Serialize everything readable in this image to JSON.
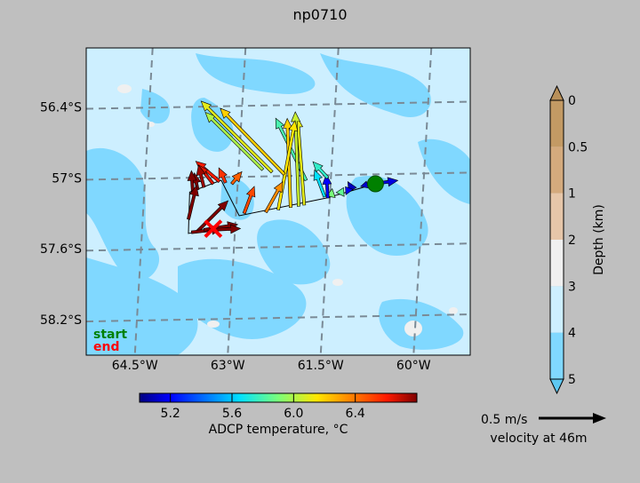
{
  "chart_data": {
    "type": "quiver-map",
    "title": "np0710",
    "lon_ticks": [
      {
        "value": -64.5,
        "label": "64.5°W"
      },
      {
        "value": -63.0,
        "label": "63°W"
      },
      {
        "value": -61.5,
        "label": "61.5°W"
      },
      {
        "value": -60.0,
        "label": "60°W"
      }
    ],
    "lat_ticks": [
      {
        "value": -56.4,
        "label": "56.4°S"
      },
      {
        "value": -57.0,
        "label": "57°S"
      },
      {
        "value": -57.6,
        "label": "57.6°S"
      },
      {
        "value": -58.2,
        "label": "58.2°S"
      }
    ],
    "lon_range": [
      -65.4,
      -59.2
    ],
    "lat_range": [
      -55.9,
      -58.5
    ],
    "track": [
      [
        -60.73,
        -57.05
      ],
      [
        -61.52,
        -57.17
      ],
      [
        -62.93,
        -57.32
      ],
      [
        -63.22,
        -57.02
      ],
      [
        -63.73,
        -57.12
      ],
      [
        -63.75,
        -57.47
      ],
      [
        -63.35,
        -57.43
      ]
    ],
    "vectors": [
      {
        "lon": -60.75,
        "lat": -57.05,
        "u": 0.35,
        "v": 0.05,
        "temp": 5.15
      },
      {
        "lon": -60.9,
        "lat": -57.08,
        "u": 0.02,
        "v": 0.09,
        "temp": 5.12
      },
      {
        "lon": -61.1,
        "lat": -57.1,
        "u": -0.07,
        "v": 0.12,
        "temp": 5.1
      },
      {
        "lon": -61.15,
        "lat": -57.12,
        "u": -0.06,
        "v": 0.08,
        "temp": 5.18
      },
      {
        "lon": -61.3,
        "lat": -57.14,
        "u": 0.05,
        "v": 0.1,
        "temp": 5.85
      },
      {
        "lon": -61.45,
        "lat": -57.16,
        "u": 0.02,
        "v": 0.12,
        "temp": 5.9
      },
      {
        "lon": -61.5,
        "lat": -57.17,
        "u": -0.02,
        "v": 0.35,
        "temp": 5.2
      },
      {
        "lon": -61.55,
        "lat": -57.16,
        "u": -0.15,
        "v": 0.4,
        "temp": 5.65
      },
      {
        "lon": -61.5,
        "lat": -57.0,
        "u": -0.22,
        "v": 0.24,
        "temp": 5.75
      },
      {
        "lon": -61.85,
        "lat": -57.02,
        "u": -0.45,
        "v": 0.92,
        "temp": 5.8
      },
      {
        "lon": -61.88,
        "lat": -57.23,
        "u": -0.1,
        "v": 1.3,
        "temp": 6.1
      },
      {
        "lon": -61.97,
        "lat": -57.24,
        "u": -0.05,
        "v": 1.4,
        "temp": 6.05
      },
      {
        "lon": -62.1,
        "lat": -57.25,
        "u": -0.05,
        "v": 1.32,
        "temp": 6.2
      },
      {
        "lon": -62.3,
        "lat": -57.27,
        "u": 0.25,
        "v": 1.32,
        "temp": 6.15
      },
      {
        "lon": -62.5,
        "lat": -57.29,
        "u": 0.25,
        "v": 0.45,
        "temp": 6.35
      },
      {
        "lon": -62.55,
        "lat": -56.93,
        "u": -0.85,
        "v": 0.85,
        "temp": 6.0
      },
      {
        "lon": -62.4,
        "lat": -56.95,
        "u": -1.05,
        "v": 1.05,
        "temp": 6.1
      },
      {
        "lon": -62.2,
        "lat": -56.97,
        "u": -0.95,
        "v": 0.98,
        "temp": 6.2
      },
      {
        "lon": -62.85,
        "lat": -57.3,
        "u": 0.15,
        "v": 0.4,
        "temp": 6.5
      },
      {
        "lon": -63.05,
        "lat": -57.05,
        "u": 0.15,
        "v": 0.18,
        "temp": 6.45
      },
      {
        "lon": -63.15,
        "lat": -57.04,
        "u": -0.1,
        "v": 0.22,
        "temp": 6.55
      },
      {
        "lon": -63.25,
        "lat": -57.03,
        "u": -0.35,
        "v": 0.3,
        "temp": 6.6
      },
      {
        "lon": -63.35,
        "lat": -57.05,
        "u": -0.22,
        "v": 0.28,
        "temp": 6.65
      },
      {
        "lon": -63.5,
        "lat": -57.08,
        "u": -0.08,
        "v": 0.33,
        "temp": 6.75
      },
      {
        "lon": -63.6,
        "lat": -57.1,
        "u": -0.05,
        "v": 0.25,
        "temp": 6.8
      },
      {
        "lon": -63.68,
        "lat": -57.11,
        "u": -0.02,
        "v": 0.3,
        "temp": 6.85
      },
      {
        "lon": -63.75,
        "lat": -57.35,
        "u": 0.12,
        "v": 0.5,
        "temp": 6.9
      },
      {
        "lon": -63.6,
        "lat": -57.45,
        "u": 0.45,
        "v": 0.45,
        "temp": 6.95
      },
      {
        "lon": -63.7,
        "lat": -57.46,
        "u": 0.45,
        "v": 0.05,
        "temp": 6.95
      },
      {
        "lon": -63.5,
        "lat": -57.44,
        "u": 0.5,
        "v": 0.08,
        "temp": 6.9
      },
      {
        "lon": -63.4,
        "lat": -57.44,
        "u": 0.45,
        "v": 0.02,
        "temp": 6.9
      }
    ],
    "start": {
      "lon": -60.73,
      "lat": -57.05
    },
    "end": {
      "lon": -63.35,
      "lat": -57.43
    },
    "legend_start": "start",
    "legend_end": "end",
    "temp_colorbar": {
      "label": "ADCP temperature, °C",
      "vmin": 5.0,
      "vmax": 6.8,
      "ticks": [
        5.2,
        5.6,
        6.0,
        6.4
      ],
      "tick_labels": [
        "5.2",
        "5.6",
        "6.0",
        "6.4"
      ]
    },
    "depth_colorbar": {
      "label": "Depth (km)",
      "ticks": [
        0,
        0.5,
        1,
        2,
        3,
        4,
        5
      ],
      "tick_labels": [
        "0",
        "0.5",
        "1",
        "2",
        "3",
        "4",
        "5"
      ],
      "colors": [
        "#c39a64",
        "#d4aa7d",
        "#e6c6a9",
        "#f0f0f0",
        "#cdefff",
        "#80d8ff"
      ],
      "extend_top_color": "#b8905a",
      "extend_bottom_color": "#5ec8f2"
    },
    "velocity_key": {
      "label": "0.5 m/s",
      "caption": "velocity at 46m",
      "value_ms": 0.5
    }
  },
  "colors": {
    "figure_bg": "#bfbfbf",
    "ocean_deep": "#80d8ff",
    "ocean_shallow": "#cdefff",
    "start_color": "#008000",
    "end_color": "#ff0000"
  }
}
